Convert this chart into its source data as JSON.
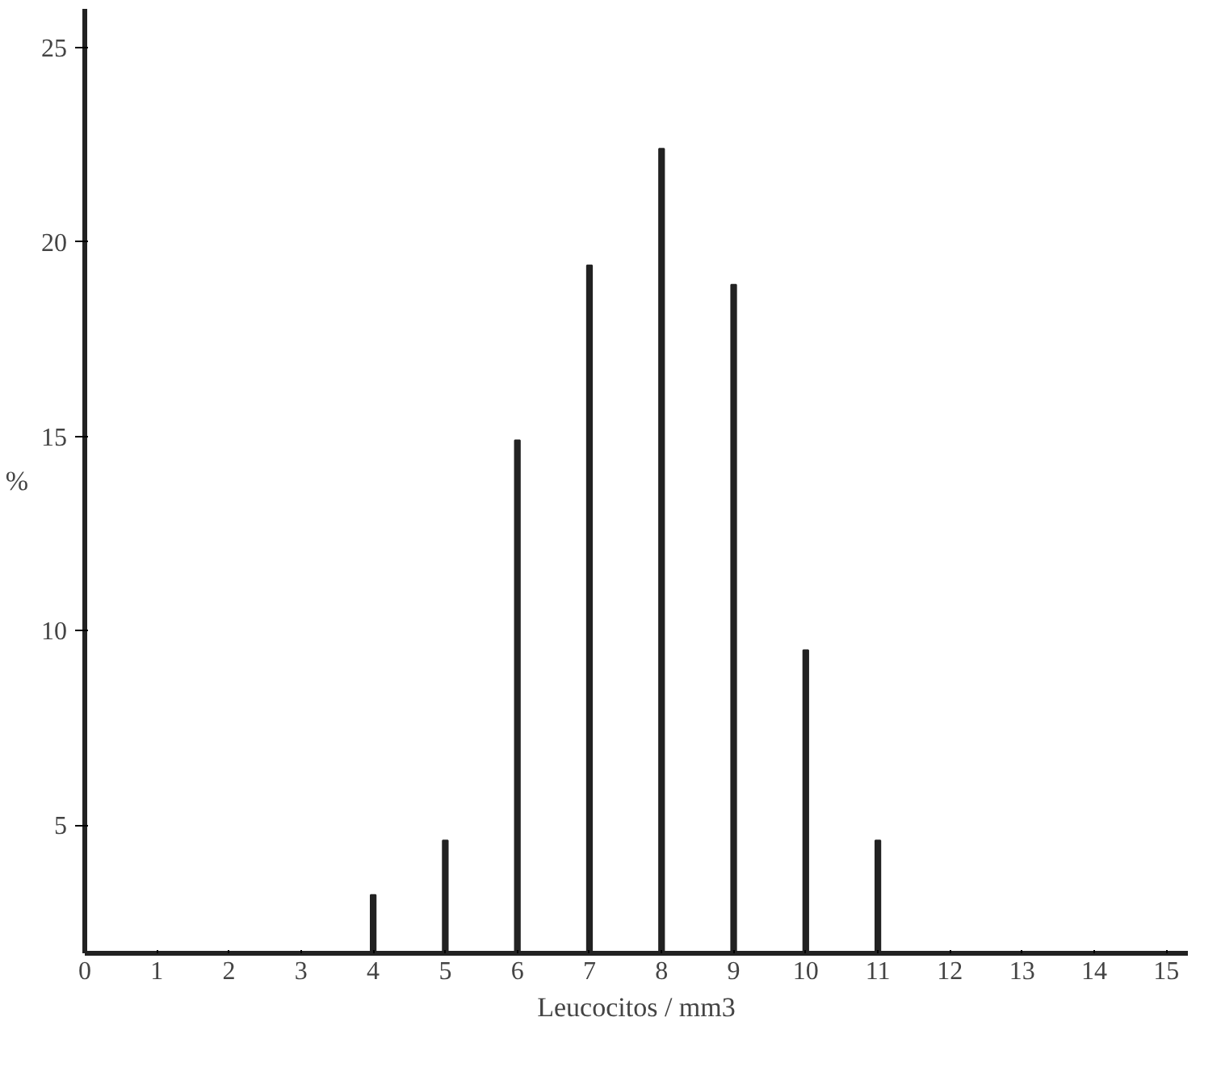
{
  "chart_data": {
    "type": "bar",
    "xlabel": "Leucocitos / mm3",
    "ylabel": "%",
    "x": [
      4,
      5,
      6,
      7,
      8,
      9,
      10,
      11
    ],
    "values": [
      3.2,
      4.6,
      14.9,
      19.4,
      22.4,
      18.9,
      9.5,
      4.6
    ],
    "color": "#222222",
    "xlim": [
      0,
      15.3
    ],
    "xticks": [
      0,
      1,
      2,
      3,
      4,
      5,
      6,
      7,
      8,
      9,
      10,
      11,
      12,
      13,
      14,
      15
    ],
    "ylim": [
      1.7,
      26
    ],
    "yticks": [
      5,
      10,
      15,
      20,
      25
    ],
    "grid": false
  }
}
